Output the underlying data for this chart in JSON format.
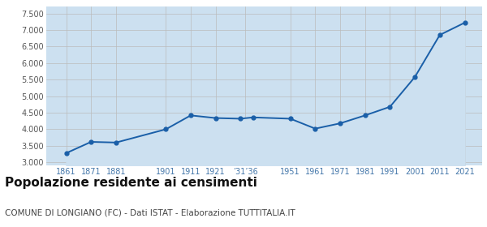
{
  "years": [
    1861,
    1871,
    1881,
    1901,
    1911,
    1921,
    1931,
    1936,
    1951,
    1961,
    1971,
    1981,
    1991,
    2001,
    2011,
    2021
  ],
  "population": [
    3280,
    3620,
    3600,
    4000,
    4420,
    4340,
    4320,
    4360,
    4320,
    4020,
    4180,
    4420,
    4680,
    5580,
    6850,
    7220
  ],
  "y_ticks": [
    3000,
    3500,
    4000,
    4500,
    5000,
    5500,
    6000,
    6500,
    7000,
    7500
  ],
  "ylim": [
    2900,
    7700
  ],
  "xlim": [
    1853,
    2028
  ],
  "line_color": "#1a5fa8",
  "fill_color": "#cce0f0",
  "marker_size": 3.5,
  "title": "Popolazione residente ai censimenti",
  "subtitle": "COMUNE DI LONGIANO (FC) - Dati ISTAT - Elaborazione TUTTITALIA.IT",
  "title_fontsize": 11,
  "subtitle_fontsize": 7.5,
  "bg_color": "#ffffff",
  "grid_color": "#bbbbbb",
  "tick_color_x": "#4477aa",
  "tick_color_y": "#555555"
}
